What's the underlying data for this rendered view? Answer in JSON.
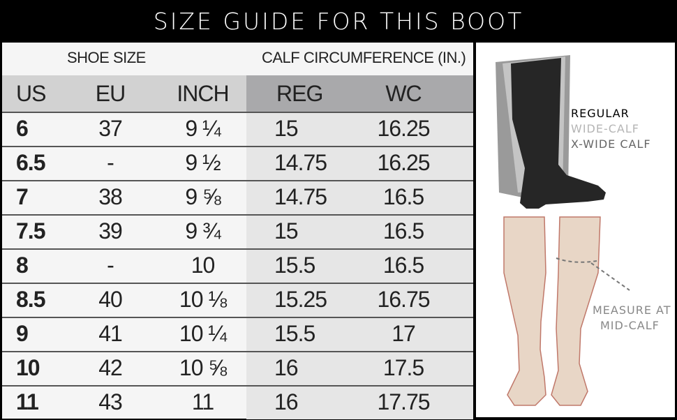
{
  "title": "SIZE GUIDE FOR THIS BOOT",
  "table": {
    "group_headers": {
      "shoe_size": "SHOE SIZE",
      "calf": "CALF CIRCUMFERENCE (IN.)"
    },
    "columns": [
      "US",
      "EU",
      "INCH",
      "REG",
      "WC"
    ],
    "rows": [
      [
        "6",
        "37",
        "9 ¼",
        "15",
        "16.25"
      ],
      [
        "6.5",
        "-",
        "9 ½",
        "14.75",
        "16.25"
      ],
      [
        "7",
        "38",
        "9 ⅝",
        "14.75",
        "16.5"
      ],
      [
        "7.5",
        "39",
        "9 ¾",
        "15",
        "16.5"
      ],
      [
        "8",
        "-",
        "10",
        "15.5",
        "16.5"
      ],
      [
        "8.5",
        "40",
        "10 ⅛",
        "15.25",
        "16.75"
      ],
      [
        "9",
        "41",
        "10 ¼",
        "15.5",
        "17"
      ],
      [
        "10",
        "42",
        "10 ⅝",
        "16",
        "17.5"
      ],
      [
        "11",
        "43",
        "11",
        "16",
        "17.75"
      ]
    ]
  },
  "illustration": {
    "legend": [
      {
        "label": "REGULAR",
        "color": "#222222"
      },
      {
        "label": "WIDE-CALF",
        "color": "#b5b5b5"
      },
      {
        "label": "X-WIDE CALF",
        "color": "#666666"
      }
    ],
    "measure_line1": "MEASURE AT",
    "measure_line2": "MID-CALF"
  }
}
